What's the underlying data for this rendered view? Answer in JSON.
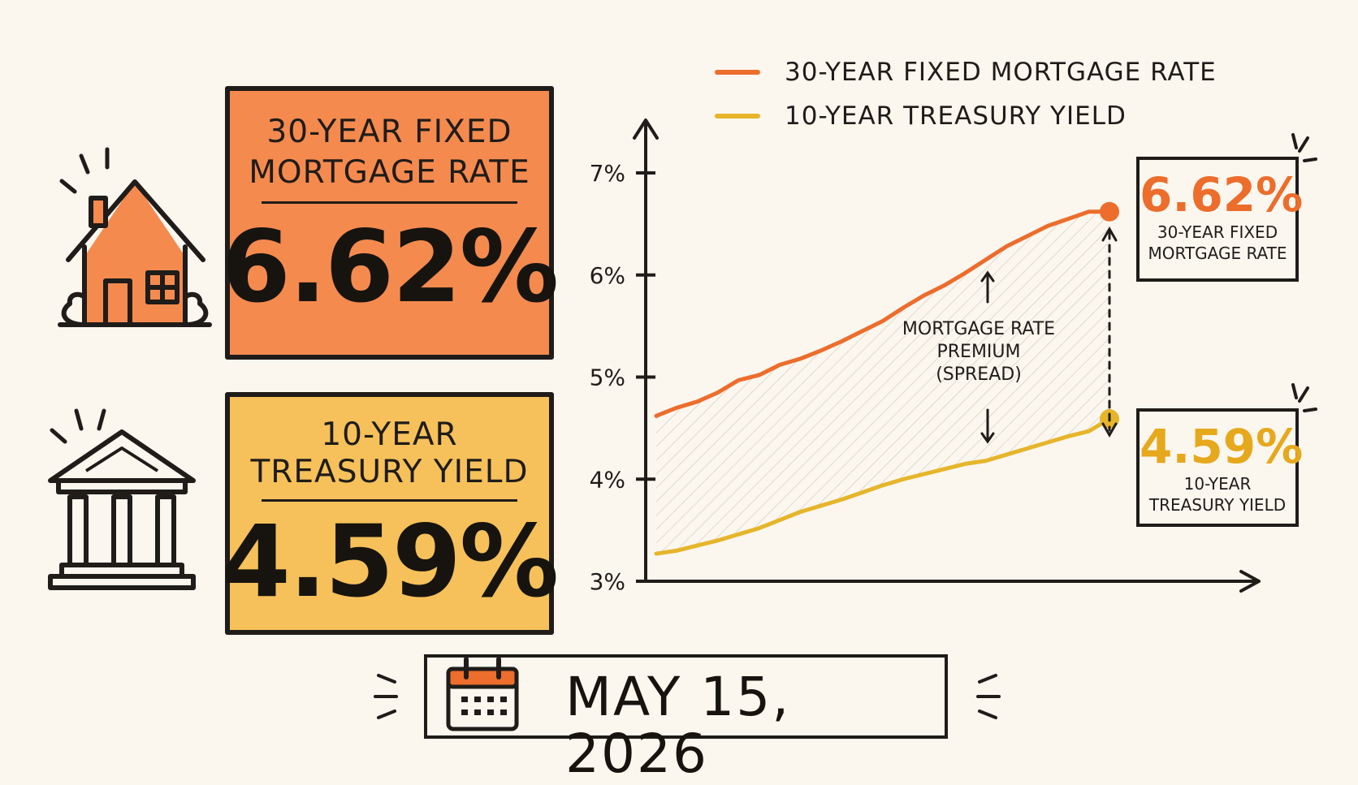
{
  "mortgage_card": {
    "title": "30-YEAR FIXED\nMORTGAGE RATE",
    "value": "6.62%",
    "color": "#f58a4f"
  },
  "treasury_card": {
    "title": "10-YEAR\nTREASURY YIELD",
    "value": "4.59%",
    "color": "#f6c15a"
  },
  "callouts": {
    "mortgage": {
      "value": "6.62%",
      "label": "30-YEAR FIXED\nMORTGAGE RATE"
    },
    "treasury": {
      "value": "4.59%",
      "label": "10-YEAR\nTREASURY YIELD"
    }
  },
  "spread_annotation": "MORTGAGE RATE\nPREMIUM\n(SPREAD)",
  "date": "MAY 15, 2026",
  "icons": [
    "house-icon",
    "bank-building-icon",
    "calendar-icon"
  ],
  "chart_data": {
    "type": "line",
    "yticks": [
      "7%",
      "6%",
      "5%",
      "4%",
      "3%"
    ],
    "ylim": [
      3,
      7
    ],
    "grid": false,
    "legend_position": "top",
    "series": [
      {
        "name": "30-YEAR FIXED MORTGAGE RATE",
        "color": "#ec6d2c",
        "values": [
          4.62,
          4.7,
          4.76,
          4.85,
          4.97,
          5.02,
          5.12,
          5.18,
          5.26,
          5.35,
          5.45,
          5.55,
          5.68,
          5.8,
          5.9,
          6.02,
          6.15,
          6.28,
          6.38,
          6.48,
          6.55,
          6.62,
          6.62
        ]
      },
      {
        "name": "10-YEAR TREASURY YIELD",
        "color": "#e6b52a",
        "values": [
          3.27,
          3.3,
          3.35,
          3.4,
          3.46,
          3.52,
          3.6,
          3.68,
          3.74,
          3.8,
          3.87,
          3.94,
          4.0,
          4.05,
          4.1,
          4.15,
          4.18,
          4.24,
          4.3,
          4.36,
          4.42,
          4.47,
          4.59
        ]
      }
    ]
  }
}
